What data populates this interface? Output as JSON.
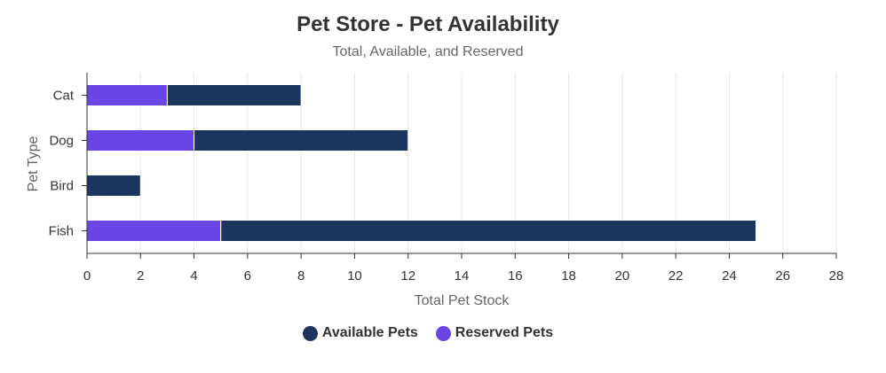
{
  "chart_data": {
    "type": "bar",
    "orientation": "horizontal",
    "stacked": true,
    "title": "Pet Store - Pet Availability",
    "subtitle": "Total, Available, and Reserved",
    "xlabel": "Total Pet Stock",
    "ylabel": "Pet Type",
    "categories": [
      "Cat",
      "Dog",
      "Bird",
      "Fish"
    ],
    "xlim": [
      0,
      28
    ],
    "ticks": [
      "0",
      "2",
      "4",
      "6",
      "8",
      "10",
      "12",
      "14",
      "16",
      "18",
      "20",
      "22",
      "24",
      "26",
      "28"
    ],
    "grid": true,
    "legend_position": "bottom",
    "series": [
      {
        "name": "Reserved Pets",
        "color": "#6845e4",
        "values": [
          3,
          4,
          0,
          5
        ]
      },
      {
        "name": "Available Pets",
        "color": "#1b355e",
        "values": [
          5,
          8,
          2,
          20
        ]
      }
    ],
    "legend": [
      {
        "name": "Available Pets",
        "color": "#1b355e"
      },
      {
        "name": "Reserved Pets",
        "color": "#6845e4"
      }
    ]
  }
}
